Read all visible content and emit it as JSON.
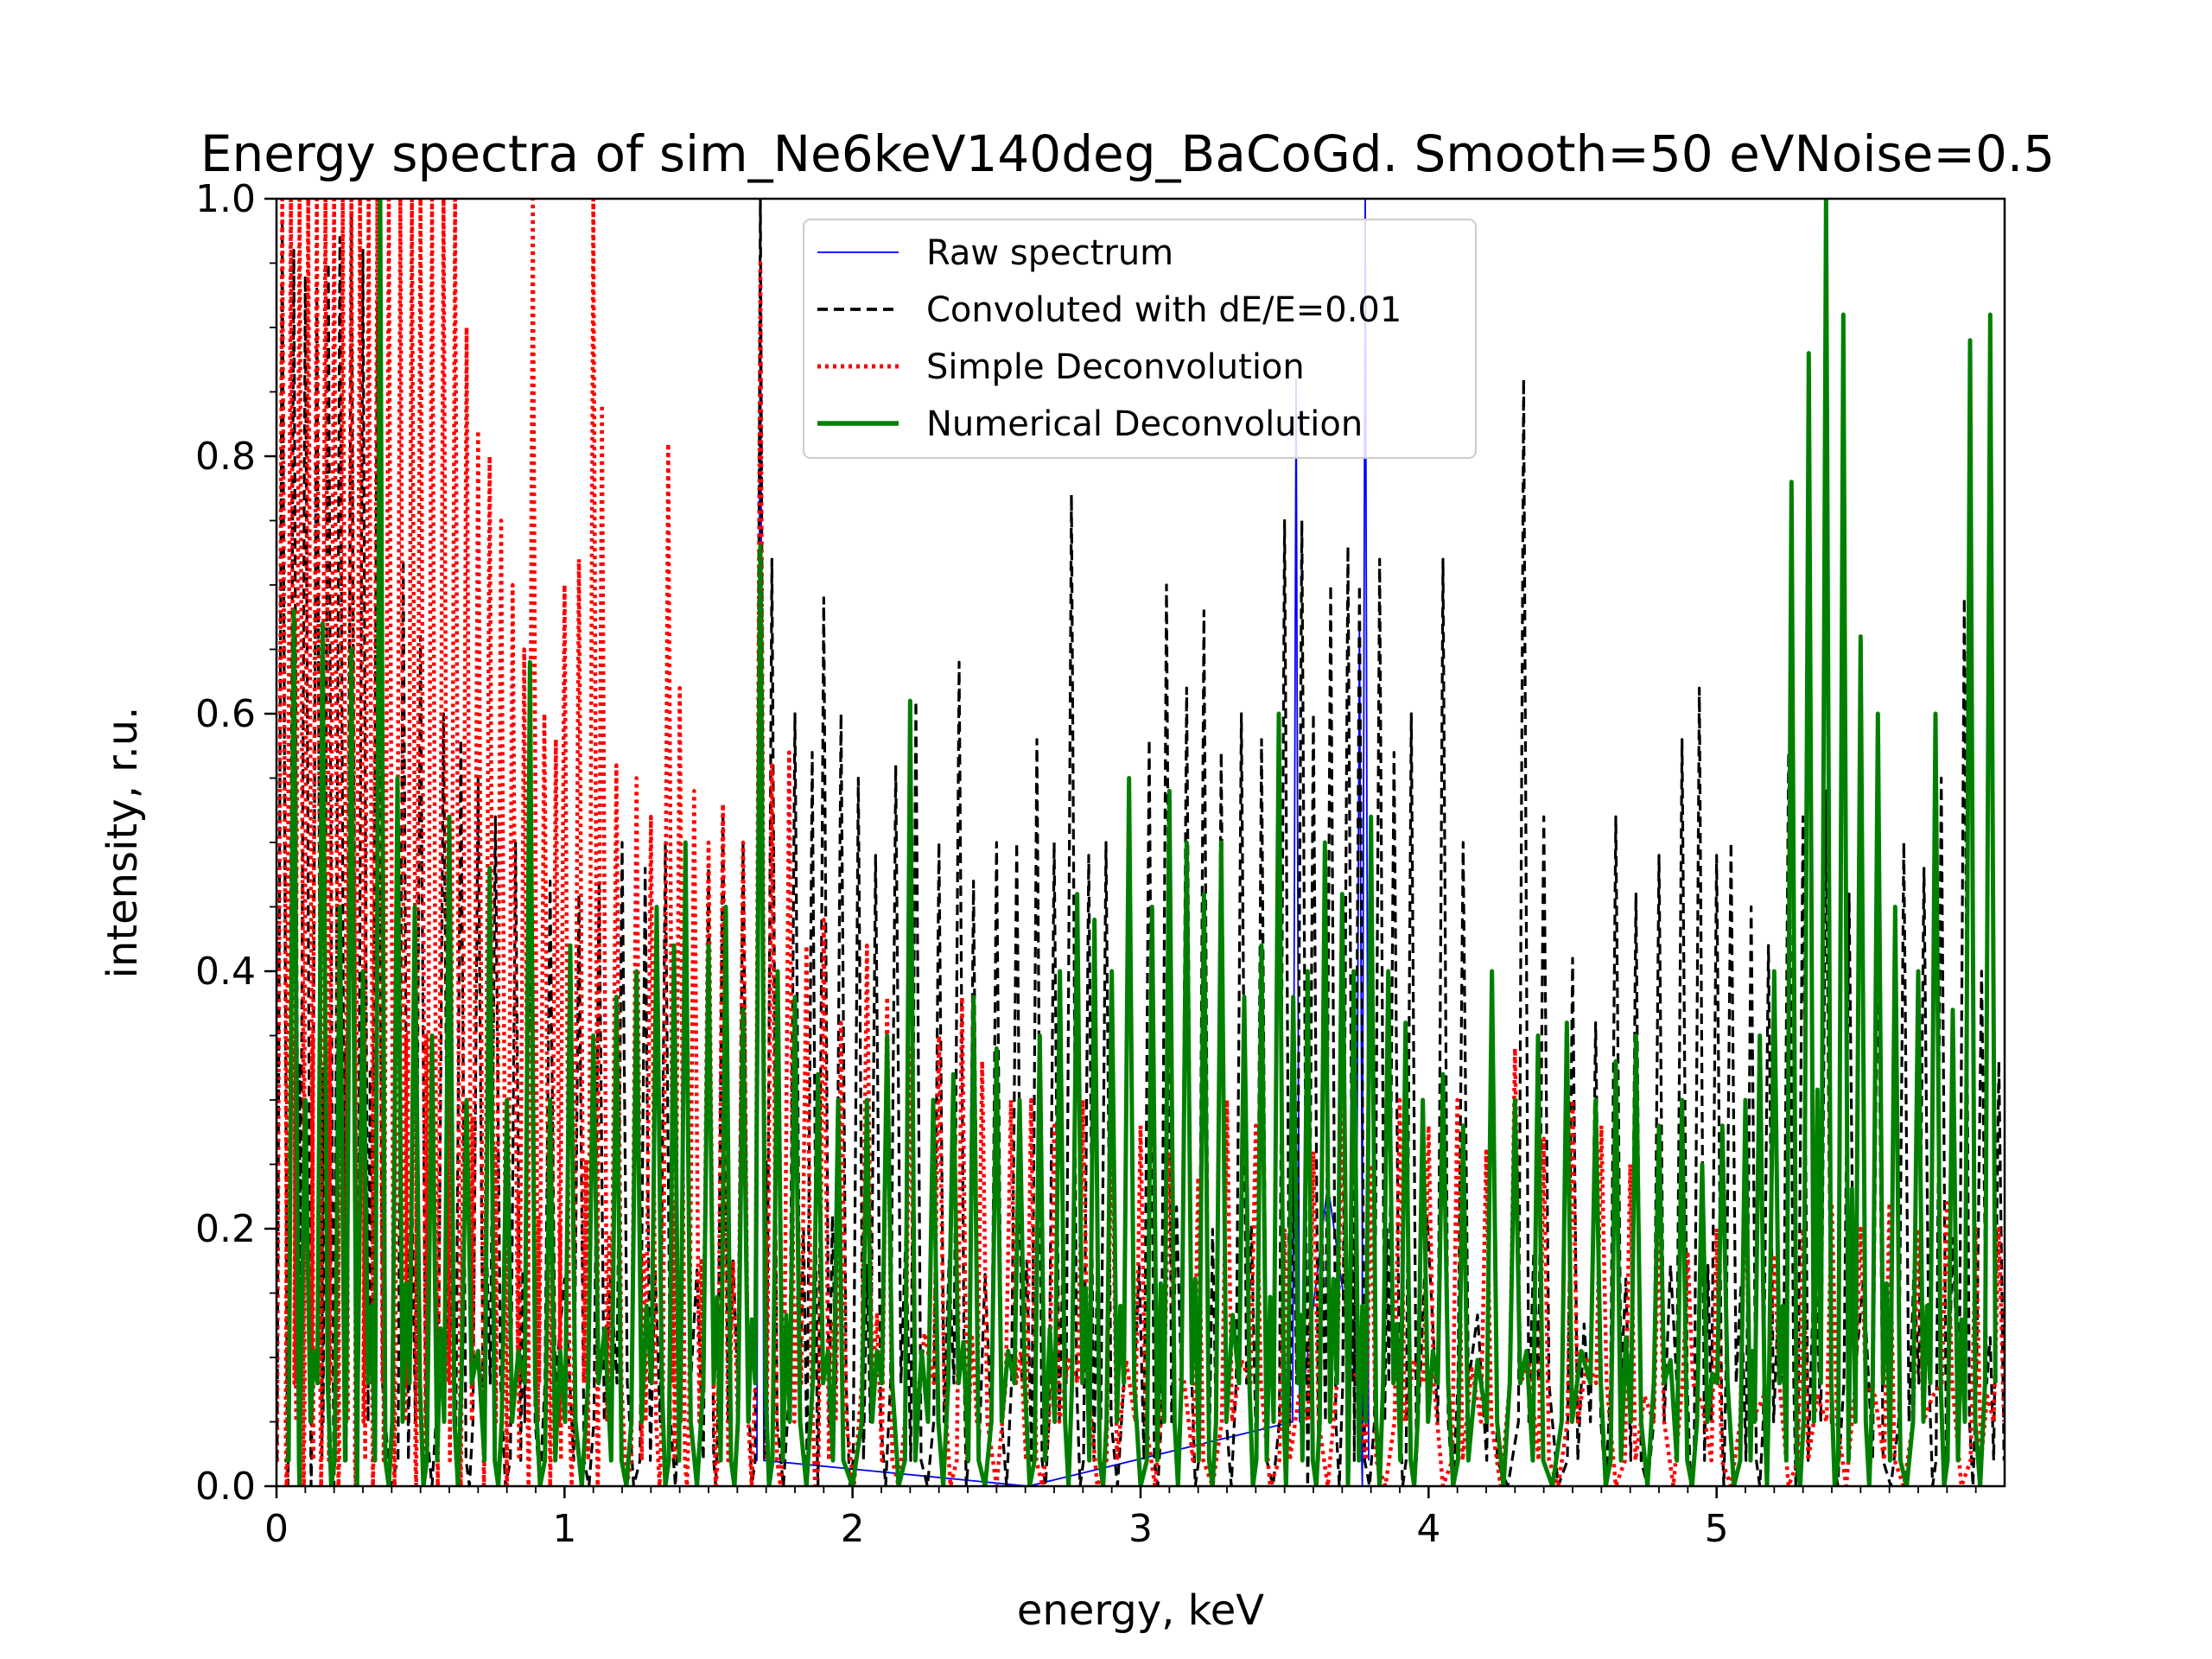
{
  "chart_data": {
    "type": "line",
    "title": "Energy spectra of sim_Ne6keV140deg_BaCoGd. Smooth=50 eVNoise=0.5",
    "xlabel": "energy, keV",
    "ylabel": "intensity, r.u.",
    "xlim": [
      0,
      6.0
    ],
    "ylim": [
      0,
      1.0
    ],
    "x_ticks": [
      0,
      1,
      2,
      3,
      4,
      5
    ],
    "x_tick_labels": [
      "0",
      "1",
      "2",
      "3",
      "4",
      "5"
    ],
    "y_ticks": [
      0.0,
      0.2,
      0.4,
      0.6,
      0.8,
      1.0
    ],
    "y_tick_labels": [
      "0.0",
      "0.2",
      "0.4",
      "0.6",
      "0.8",
      "1.0"
    ],
    "grid": false,
    "legend_position": "top-center",
    "series": [
      {
        "name": "Raw spectrum",
        "color": "#0000ff",
        "style": "solid-thin",
        "peaks": [
          [
            3.54,
            0.86
          ],
          [
            3.78,
            1.0
          ],
          [
            3.76,
            0.67
          ],
          [
            1.68,
            0.98
          ]
        ]
      },
      {
        "name": "Convoluted with dE/E=0.01",
        "color": "#000000",
        "style": "dashed",
        "peaks": [
          [
            0.02,
            0.98
          ],
          [
            0.06,
            0.96
          ],
          [
            0.1,
            0.94
          ],
          [
            0.14,
            0.93
          ],
          [
            0.18,
            0.95
          ],
          [
            0.22,
            0.97
          ],
          [
            0.26,
            0.99
          ],
          [
            0.3,
            0.96
          ],
          [
            0.35,
            0.92
          ],
          [
            0.44,
            0.72
          ],
          [
            0.5,
            0.66
          ],
          [
            0.58,
            0.6
          ],
          [
            0.64,
            0.58
          ],
          [
            0.7,
            0.55
          ],
          [
            0.76,
            0.52
          ],
          [
            0.83,
            0.5
          ],
          [
            0.88,
            0.48
          ],
          [
            0.95,
            0.47
          ],
          [
            1.05,
            0.46
          ],
          [
            1.12,
            0.47
          ],
          [
            1.2,
            0.5
          ],
          [
            1.28,
            0.48
          ],
          [
            1.35,
            0.5
          ],
          [
            1.42,
            0.49
          ],
          [
            1.5,
            0.48
          ],
          [
            1.55,
            0.52
          ],
          [
            1.62,
            0.5
          ],
          [
            1.68,
            1.0
          ],
          [
            1.72,
            0.72
          ],
          [
            1.8,
            0.6
          ],
          [
            1.86,
            0.57
          ],
          [
            1.9,
            0.69
          ],
          [
            1.96,
            0.6
          ],
          [
            2.02,
            0.55
          ],
          [
            2.08,
            0.49
          ],
          [
            2.15,
            0.56
          ],
          [
            2.22,
            0.61
          ],
          [
            2.3,
            0.5
          ],
          [
            2.37,
            0.64
          ],
          [
            2.42,
            0.47
          ],
          [
            2.5,
            0.5
          ],
          [
            2.57,
            0.5
          ],
          [
            2.64,
            0.58
          ],
          [
            2.7,
            0.5
          ],
          [
            2.76,
            0.77
          ],
          [
            2.82,
            0.49
          ],
          [
            2.88,
            0.5
          ],
          [
            2.96,
            0.49
          ],
          [
            3.03,
            0.58
          ],
          [
            3.09,
            0.7
          ],
          [
            3.16,
            0.62
          ],
          [
            3.22,
            0.68
          ],
          [
            3.28,
            0.57
          ],
          [
            3.35,
            0.6
          ],
          [
            3.42,
            0.58
          ],
          [
            3.5,
            0.75
          ],
          [
            3.56,
            0.75
          ],
          [
            3.6,
            0.6
          ],
          [
            3.66,
            0.7
          ],
          [
            3.72,
            0.73
          ],
          [
            3.76,
            0.7
          ],
          [
            3.83,
            0.72
          ],
          [
            3.88,
            0.57
          ],
          [
            3.94,
            0.6
          ],
          [
            4.05,
            0.72
          ],
          [
            4.12,
            0.5
          ],
          [
            4.22,
            0.38
          ],
          [
            4.33,
            0.86
          ],
          [
            4.4,
            0.52
          ],
          [
            4.5,
            0.41
          ],
          [
            4.58,
            0.36
          ],
          [
            4.65,
            0.52
          ],
          [
            4.72,
            0.46
          ],
          [
            4.8,
            0.49
          ],
          [
            4.88,
            0.58
          ],
          [
            4.94,
            0.62
          ],
          [
            5.0,
            0.49
          ],
          [
            5.05,
            0.5
          ],
          [
            5.12,
            0.45
          ],
          [
            5.18,
            0.42
          ],
          [
            5.25,
            0.57
          ],
          [
            5.3,
            0.52
          ],
          [
            5.38,
            0.54
          ],
          [
            5.46,
            0.46
          ],
          [
            5.56,
            0.46
          ],
          [
            5.65,
            0.5
          ],
          [
            5.72,
            0.48
          ],
          [
            5.78,
            0.55
          ],
          [
            5.86,
            0.69
          ],
          [
            5.92,
            0.4
          ],
          [
            5.98,
            0.33
          ]
        ]
      },
      {
        "name": "Simple Deconvolution",
        "color": "#ff0000",
        "style": "dotted",
        "peaks": [
          [
            0.02,
            1.0
          ],
          [
            0.05,
            1.0
          ],
          [
            0.08,
            1.0
          ],
          [
            0.11,
            1.0
          ],
          [
            0.14,
            1.0
          ],
          [
            0.17,
            1.0
          ],
          [
            0.2,
            1.0
          ],
          [
            0.23,
            1.0
          ],
          [
            0.26,
            1.0
          ],
          [
            0.29,
            1.0
          ],
          [
            0.32,
            1.0
          ],
          [
            0.35,
            1.0
          ],
          [
            0.39,
            1.0
          ],
          [
            0.43,
            1.0
          ],
          [
            0.47,
            1.0
          ],
          [
            0.5,
            1.0
          ],
          [
            0.54,
            1.0
          ],
          [
            0.58,
            1.0
          ],
          [
            0.62,
            1.0
          ],
          [
            0.66,
            0.9
          ],
          [
            0.7,
            0.82
          ],
          [
            0.74,
            0.8
          ],
          [
            0.78,
            0.75
          ],
          [
            0.82,
            0.7
          ],
          [
            0.86,
            0.65
          ],
          [
            0.89,
            1.0
          ],
          [
            0.93,
            0.6
          ],
          [
            0.97,
            0.58
          ],
          [
            1.0,
            0.7
          ],
          [
            1.05,
            0.72
          ],
          [
            1.1,
            1.0
          ],
          [
            1.13,
            0.84
          ],
          [
            1.18,
            0.56
          ],
          [
            1.25,
            0.55
          ],
          [
            1.3,
            0.52
          ],
          [
            1.36,
            0.81
          ],
          [
            1.4,
            0.62
          ],
          [
            1.45,
            0.54
          ],
          [
            1.5,
            0.5
          ],
          [
            1.55,
            0.53
          ],
          [
            1.62,
            0.5
          ],
          [
            1.68,
            0.95
          ],
          [
            1.72,
            0.56
          ],
          [
            1.78,
            0.57
          ],
          [
            1.84,
            0.42
          ],
          [
            1.9,
            0.44
          ],
          [
            1.96,
            0.36
          ],
          [
            2.05,
            0.42
          ],
          [
            2.12,
            0.38
          ],
          [
            2.2,
            0.34
          ],
          [
            2.3,
            0.35
          ],
          [
            2.38,
            0.38
          ],
          [
            2.45,
            0.33
          ],
          [
            2.55,
            0.3
          ],
          [
            2.62,
            0.3
          ],
          [
            2.7,
            0.28
          ],
          [
            2.8,
            0.3
          ],
          [
            2.9,
            0.3
          ],
          [
            3.0,
            0.28
          ],
          [
            3.1,
            0.26
          ],
          [
            3.2,
            0.24
          ],
          [
            3.3,
            0.3
          ],
          [
            3.4,
            0.28
          ],
          [
            3.5,
            0.2
          ],
          [
            3.6,
            0.26
          ],
          [
            3.7,
            0.3
          ],
          [
            3.8,
            0.25
          ],
          [
            3.9,
            0.3
          ],
          [
            4.0,
            0.28
          ],
          [
            4.1,
            0.3
          ],
          [
            4.2,
            0.26
          ],
          [
            4.3,
            0.34
          ],
          [
            4.4,
            0.27
          ],
          [
            4.5,
            0.3
          ],
          [
            4.6,
            0.28
          ],
          [
            4.7,
            0.25
          ],
          [
            4.8,
            0.2
          ],
          [
            4.9,
            0.18
          ],
          [
            5.0,
            0.2
          ],
          [
            5.1,
            0.24
          ],
          [
            5.2,
            0.18
          ],
          [
            5.3,
            0.2
          ],
          [
            5.4,
            0.22
          ],
          [
            5.5,
            0.2
          ],
          [
            5.6,
            0.22
          ],
          [
            5.7,
            0.2
          ],
          [
            5.8,
            0.22
          ],
          [
            5.9,
            0.2
          ],
          [
            5.98,
            0.2
          ]
        ]
      },
      {
        "name": "Numerical Deconvolution",
        "color": "#008000",
        "style": "solid-thick",
        "peaks": [
          [
            0.06,
            0.68
          ],
          [
            0.1,
            0.3
          ],
          [
            0.16,
            0.67
          ],
          [
            0.22,
            0.45
          ],
          [
            0.26,
            0.65
          ],
          [
            0.3,
            0.4
          ],
          [
            0.36,
            1.0
          ],
          [
            0.42,
            0.55
          ],
          [
            0.48,
            0.45
          ],
          [
            0.54,
            0.35
          ],
          [
            0.6,
            0.52
          ],
          [
            0.66,
            0.3
          ],
          [
            0.74,
            0.48
          ],
          [
            0.8,
            0.3
          ],
          [
            0.88,
            0.64
          ],
          [
            0.95,
            0.3
          ],
          [
            1.02,
            0.42
          ],
          [
            1.1,
            0.35
          ],
          [
            1.18,
            0.38
          ],
          [
            1.25,
            0.4
          ],
          [
            1.32,
            0.45
          ],
          [
            1.38,
            0.42
          ],
          [
            1.42,
            0.5
          ],
          [
            1.5,
            0.42
          ],
          [
            1.56,
            0.45
          ],
          [
            1.62,
            0.37
          ],
          [
            1.68,
            0.73
          ],
          [
            1.74,
            0.4
          ],
          [
            1.8,
            0.38
          ],
          [
            1.88,
            0.32
          ],
          [
            1.95,
            0.3
          ],
          [
            2.05,
            0.3
          ],
          [
            2.12,
            0.35
          ],
          [
            2.2,
            0.61
          ],
          [
            2.28,
            0.3
          ],
          [
            2.35,
            0.32
          ],
          [
            2.42,
            0.38
          ],
          [
            2.5,
            0.34
          ],
          [
            2.58,
            0.3
          ],
          [
            2.65,
            0.35
          ],
          [
            2.72,
            0.4
          ],
          [
            2.78,
            0.46
          ],
          [
            2.84,
            0.44
          ],
          [
            2.9,
            0.4
          ],
          [
            2.96,
            0.55
          ],
          [
            3.04,
            0.45
          ],
          [
            3.1,
            0.54
          ],
          [
            3.16,
            0.5
          ],
          [
            3.22,
            0.46
          ],
          [
            3.28,
            0.5
          ],
          [
            3.36,
            0.38
          ],
          [
            3.42,
            0.42
          ],
          [
            3.48,
            0.6
          ],
          [
            3.53,
            0.38
          ],
          [
            3.58,
            0.4
          ],
          [
            3.64,
            0.5
          ],
          [
            3.7,
            0.46
          ],
          [
            3.74,
            0.4
          ],
          [
            3.8,
            0.52
          ],
          [
            3.86,
            0.4
          ],
          [
            3.92,
            0.36
          ],
          [
            3.98,
            0.3
          ],
          [
            4.05,
            0.32
          ],
          [
            4.12,
            0.28
          ],
          [
            4.22,
            0.4
          ],
          [
            4.3,
            0.3
          ],
          [
            4.38,
            0.35
          ],
          [
            4.48,
            0.36
          ],
          [
            4.58,
            0.3
          ],
          [
            4.65,
            0.33
          ],
          [
            4.72,
            0.35
          ],
          [
            4.8,
            0.28
          ],
          [
            4.88,
            0.3
          ],
          [
            4.95,
            0.25
          ],
          [
            5.02,
            0.28
          ],
          [
            5.1,
            0.3
          ],
          [
            5.15,
            0.35
          ],
          [
            5.2,
            0.4
          ],
          [
            5.26,
            0.78
          ],
          [
            5.32,
            0.88
          ],
          [
            5.38,
            1.0
          ],
          [
            5.44,
            0.91
          ],
          [
            5.5,
            0.66
          ],
          [
            5.56,
            0.6
          ],
          [
            5.62,
            0.45
          ],
          [
            5.7,
            0.4
          ],
          [
            5.76,
            0.6
          ],
          [
            5.82,
            0.37
          ],
          [
            5.88,
            0.89
          ],
          [
            5.95,
            0.91
          ]
        ]
      }
    ]
  }
}
